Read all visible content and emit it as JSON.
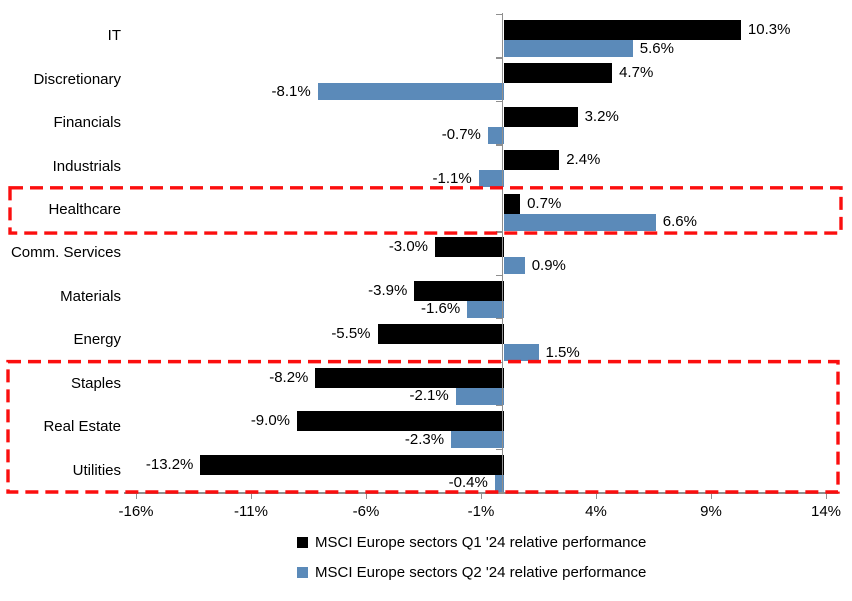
{
  "chart_data": {
    "type": "bar",
    "orientation": "horizontal",
    "title": "",
    "categories": [
      "IT",
      "Discretionary",
      "Financials",
      "Industrials",
      "Healthcare",
      "Comm. Services",
      "Materials",
      "Energy",
      "Staples",
      "Real Estate",
      "Utilities"
    ],
    "series": [
      {
        "name": "MSCI Europe sectors Q1 '24 relative performance",
        "color": "#000000",
        "values": [
          10.3,
          4.7,
          3.2,
          2.4,
          0.7,
          -3.0,
          -3.9,
          -5.5,
          -8.2,
          -9.0,
          -13.2
        ],
        "labels": [
          "10.3%",
          "4.7%",
          "3.2%",
          "2.4%",
          "0.7%",
          "-3.0%",
          "-3.9%",
          "-5.5%",
          "-8.2%",
          "-9.0%",
          "-13.2%"
        ]
      },
      {
        "name": "MSCI Europe sectors Q2 '24 relative performance",
        "color": "#5b8ab9",
        "values": [
          5.6,
          -8.1,
          -0.7,
          -1.1,
          6.6,
          0.9,
          -1.6,
          1.5,
          -2.1,
          -2.3,
          -0.4
        ],
        "labels": [
          "5.6%",
          "-8.1%",
          "-0.7%",
          "-1.1%",
          "6.6%",
          "0.9%",
          "-1.6%",
          "1.5%",
          "-2.1%",
          "-2.3%",
          "-0.4%"
        ]
      }
    ],
    "x_axis": {
      "min": -16.5,
      "max": 14.5,
      "ticks": [
        {
          "value": -16,
          "label": "-16%"
        },
        {
          "value": -11,
          "label": "-11%"
        },
        {
          "value": -6,
          "label": "-6%"
        },
        {
          "value": -1,
          "label": "-1%"
        },
        {
          "value": 4,
          "label": "4%"
        },
        {
          "value": 9,
          "label": "9%"
        },
        {
          "value": 14,
          "label": "14%"
        }
      ]
    },
    "grid": false,
    "legend_position": "bottom",
    "axis_color": "#8f8f8f",
    "label_color": "#000000",
    "highlight_color": "#fb0e0e",
    "highlights": [
      {
        "name": "healthcare",
        "categories": [
          "Healthcare"
        ]
      },
      {
        "name": "staples-real-estate-utilities",
        "categories": [
          "Staples",
          "Real Estate",
          "Utilities"
        ]
      }
    ]
  }
}
